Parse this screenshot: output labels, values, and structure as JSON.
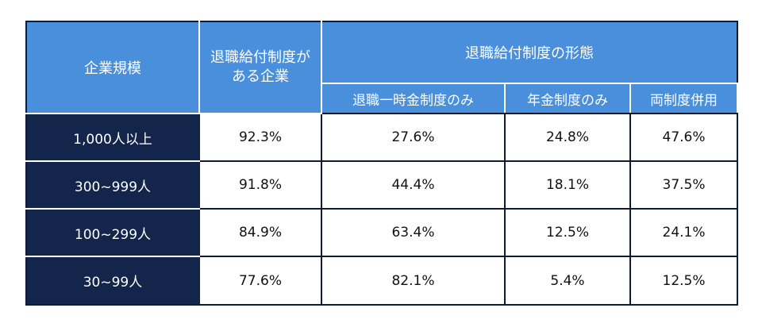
{
  "chart_data": {
    "type": "table",
    "header": {
      "size": "企業規模",
      "has_plan": "退職給付制度がある企業",
      "form_group": "退職給付制度の形態",
      "form_cols": [
        "退職一時金制度のみ",
        "年金制度のみ",
        "両制度併用"
      ]
    },
    "rows": [
      {
        "label": "1,000人以上",
        "values": [
          "92.3%",
          "27.6%",
          "24.8%",
          "47.6%"
        ]
      },
      {
        "label": "300~999人",
        "values": [
          "91.8%",
          "44.4%",
          "18.1%",
          "37.5%"
        ]
      },
      {
        "label": "100~299人",
        "values": [
          "84.9%",
          "63.4%",
          "12.5%",
          "24.1%"
        ]
      },
      {
        "label": "30~99人",
        "values": [
          "77.6%",
          "82.1%",
          "5.4%",
          "12.5%"
        ]
      }
    ]
  },
  "colors": {
    "header_bg": "#4a8fdb",
    "row_label_bg": "#13254a",
    "border": "#0d1b33"
  }
}
